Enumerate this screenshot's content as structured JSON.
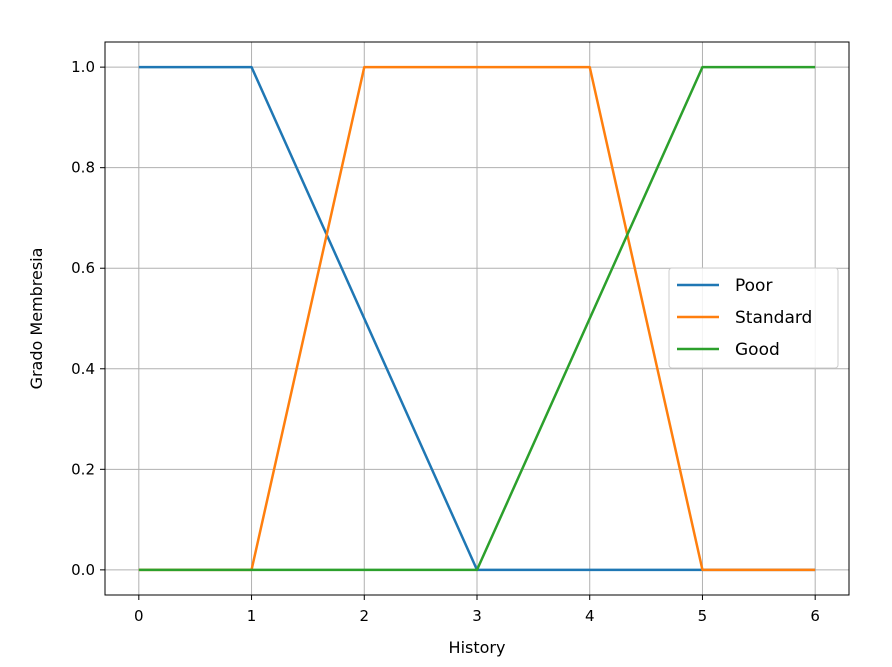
{
  "chart_data": {
    "type": "line",
    "xlabel": "History",
    "ylabel": "Grado Membresia",
    "xlim": [
      -0.3,
      6.3
    ],
    "ylim": [
      -0.05,
      1.05
    ],
    "xticks": [
      "0",
      "1",
      "2",
      "3",
      "4",
      "5",
      "6"
    ],
    "yticks": [
      "0.0",
      "0.2",
      "0.4",
      "0.6",
      "0.8",
      "1.0"
    ],
    "grid": true,
    "legend_position": "center-right",
    "series": [
      {
        "name": "Poor",
        "color": "#1f77b4",
        "x": [
          0,
          1,
          3,
          6
        ],
        "y": [
          1,
          1,
          0,
          0
        ]
      },
      {
        "name": "Standard",
        "color": "#ff7f0e",
        "x": [
          0,
          1,
          2,
          4,
          5,
          6
        ],
        "y": [
          0,
          0,
          1,
          1,
          0,
          0
        ]
      },
      {
        "name": "Good",
        "color": "#2ca02c",
        "x": [
          0,
          3,
          5,
          6
        ],
        "y": [
          0,
          0,
          1,
          1
        ]
      }
    ]
  }
}
